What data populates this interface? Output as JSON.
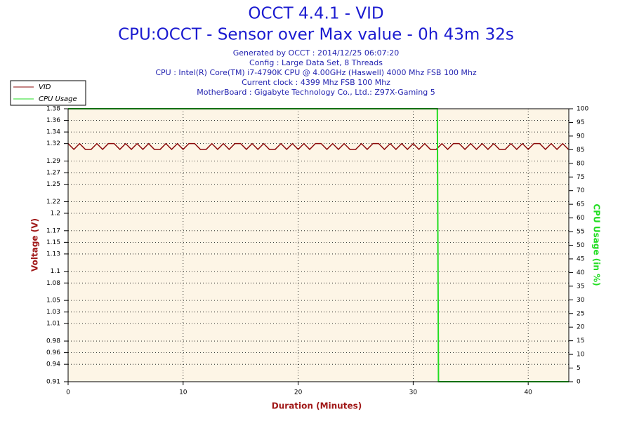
{
  "chart_data": {
    "type": "line",
    "title": "OCCT 4.4.1 - VID",
    "subtitle": "CPU:OCCT - Sensor over Max value - 0h 43m 32s",
    "info_lines": [
      "Generated by OCCT : 2014/12/25 06:07:20",
      "Config : Large Data Set, 8 Threads",
      "CPU : Intel(R) Core(TM) i7-4790K CPU @ 4.00GHz (Haswell) 4000 Mhz FSB 100 Mhz",
      "Current clock : 4399 Mhz FSB 100 Mhz",
      "MotherBoard : Gigabyte Technology Co., Ltd.: Z97X-Gaming 5"
    ],
    "x_label": "Duration (Minutes)",
    "y_label": "Voltage (V)",
    "y2_label": "CPU Usage (in %)",
    "xlim": [
      0,
      43.53
    ],
    "xticks": [
      0,
      10,
      20,
      30,
      40
    ],
    "ylim": [
      0.91,
      1.38
    ],
    "yticks": [
      0.91,
      0.94,
      0.96,
      0.98,
      1.01,
      1.03,
      1.05,
      1.08,
      1.1,
      1.13,
      1.15,
      1.17,
      1.2,
      1.22,
      1.25,
      1.27,
      1.29,
      1.32,
      1.34,
      1.36,
      1.38
    ],
    "y2lim": [
      0,
      100
    ],
    "y2ticks": [
      0,
      5,
      10,
      15,
      20,
      25,
      30,
      35,
      40,
      45,
      50,
      55,
      60,
      65,
      70,
      75,
      80,
      85,
      90,
      95,
      100
    ],
    "grid": true,
    "legend": "top-left",
    "series": [
      {
        "name": "VID",
        "color": "#8b0a0a",
        "x": [
          0,
          0.5,
          1,
          1.5,
          2,
          2.5,
          3,
          3.5,
          4,
          4.5,
          5,
          5.5,
          6,
          6.5,
          7,
          7.5,
          8,
          8.5,
          9,
          9.5,
          10,
          10.5,
          11,
          11.5,
          12,
          12.5,
          13,
          13.5,
          14,
          14.5,
          15,
          15.5,
          16,
          16.5,
          17,
          17.5,
          18,
          18.5,
          19,
          19.5,
          20,
          20.5,
          21,
          21.5,
          22,
          22.5,
          23,
          23.5,
          24,
          24.5,
          25,
          25.5,
          26,
          26.5,
          27,
          27.5,
          28,
          28.5,
          29,
          29.5,
          30,
          30.5,
          31,
          31.5,
          32,
          32.5,
          33,
          33.5,
          34,
          34.5,
          35,
          35.5,
          36,
          36.5,
          37,
          37.5,
          38,
          38.5,
          39,
          39.5,
          40,
          40.5,
          41,
          41.5,
          42,
          42.5,
          43,
          43.5
        ],
        "values": [
          1.32,
          1.31,
          1.32,
          1.31,
          1.31,
          1.32,
          1.31,
          1.32,
          1.32,
          1.31,
          1.32,
          1.31,
          1.32,
          1.31,
          1.32,
          1.31,
          1.31,
          1.32,
          1.31,
          1.32,
          1.31,
          1.32,
          1.32,
          1.31,
          1.31,
          1.32,
          1.31,
          1.32,
          1.31,
          1.32,
          1.32,
          1.31,
          1.32,
          1.31,
          1.32,
          1.31,
          1.31,
          1.32,
          1.31,
          1.32,
          1.31,
          1.32,
          1.31,
          1.32,
          1.32,
          1.31,
          1.32,
          1.31,
          1.32,
          1.31,
          1.31,
          1.32,
          1.31,
          1.32,
          1.32,
          1.31,
          1.32,
          1.31,
          1.32,
          1.31,
          1.32,
          1.31,
          1.32,
          1.31,
          1.31,
          1.32,
          1.31,
          1.32,
          1.32,
          1.31,
          1.32,
          1.31,
          1.32,
          1.31,
          1.32,
          1.31,
          1.31,
          1.32,
          1.31,
          1.32,
          1.31,
          1.32,
          1.32,
          1.31,
          1.32,
          1.31,
          1.32,
          1.31
        ]
      },
      {
        "name": "CPU Usage",
        "color": "#22dd22",
        "axis": "y2",
        "x": [
          0,
          32.1,
          32.15,
          32.2,
          43.53
        ],
        "values": [
          100,
          100,
          50,
          0,
          0
        ]
      }
    ]
  }
}
